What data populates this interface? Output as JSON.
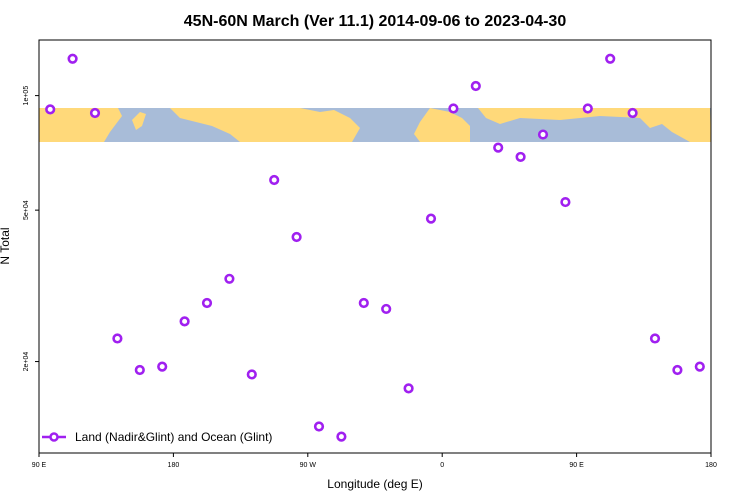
{
  "chart_data": {
    "type": "scatter",
    "title": "45N-60N March (Ver 11.1)   2014-09-06 to 2023-04-30",
    "xlabel": "Longitude (deg E)",
    "ylabel": "N Total",
    "y_scale": "log",
    "xlim": [
      90,
      540
    ],
    "ylim": [
      11500,
      140000
    ],
    "x_ticks": [
      {
        "value": 90,
        "label": "90 E"
      },
      {
        "value": 180,
        "label": "180"
      },
      {
        "value": 270,
        "label": "90 W"
      },
      {
        "value": 360,
        "label": "0"
      },
      {
        "value": 450,
        "label": "90 E"
      },
      {
        "value": 540,
        "label": "180"
      }
    ],
    "y_ticks": [
      {
        "value": 20000,
        "label": "2e+04"
      },
      {
        "value": 50000,
        "label": "5e+04"
      },
      {
        "value": 100000,
        "label": "1e+05"
      }
    ],
    "marker_color": "#a020f0",
    "map_colors": {
      "ocean": "#a8bcd8",
      "land": "#ffd97a"
    },
    "series": [
      {
        "name": "Land (Nadir&Glint) and Ocean (Glint)",
        "points": [
          {
            "x": 97.5,
            "y": 92000
          },
          {
            "x": 112.5,
            "y": 125000
          },
          {
            "x": 127.5,
            "y": 90000
          },
          {
            "x": 142.5,
            "y": 23000
          },
          {
            "x": 157.5,
            "y": 19000
          },
          {
            "x": 172.5,
            "y": 19400
          },
          {
            "x": 187.5,
            "y": 25500
          },
          {
            "x": 202.5,
            "y": 28500
          },
          {
            "x": 217.5,
            "y": 33000
          },
          {
            "x": 232.5,
            "y": 18500
          },
          {
            "x": 247.5,
            "y": 60000
          },
          {
            "x": 262.5,
            "y": 42500
          },
          {
            "x": 277.5,
            "y": 13500
          },
          {
            "x": 292.5,
            "y": 12700
          },
          {
            "x": 307.5,
            "y": 28500
          },
          {
            "x": 322.5,
            "y": 27500
          },
          {
            "x": 337.5,
            "y": 17000
          },
          {
            "x": 352.5,
            "y": 47500
          },
          {
            "x": 367.5,
            "y": 92500
          },
          {
            "x": 382.5,
            "y": 106000
          },
          {
            "x": 397.5,
            "y": 73000
          },
          {
            "x": 412.5,
            "y": 69000
          },
          {
            "x": 427.5,
            "y": 79000
          },
          {
            "x": 442.5,
            "y": 52500
          },
          {
            "x": 457.5,
            "y": 92500
          },
          {
            "x": 472.5,
            "y": 125000
          },
          {
            "x": 487.5,
            "y": 90000
          },
          {
            "x": 502.5,
            "y": 23000
          },
          {
            "x": 517.5,
            "y": 19000
          },
          {
            "x": 532.5,
            "y": 19400
          }
        ]
      }
    ],
    "legend": {
      "position": "bottom-left",
      "label": "Land (Nadir&Glint) and Ocean (Glint)"
    }
  }
}
